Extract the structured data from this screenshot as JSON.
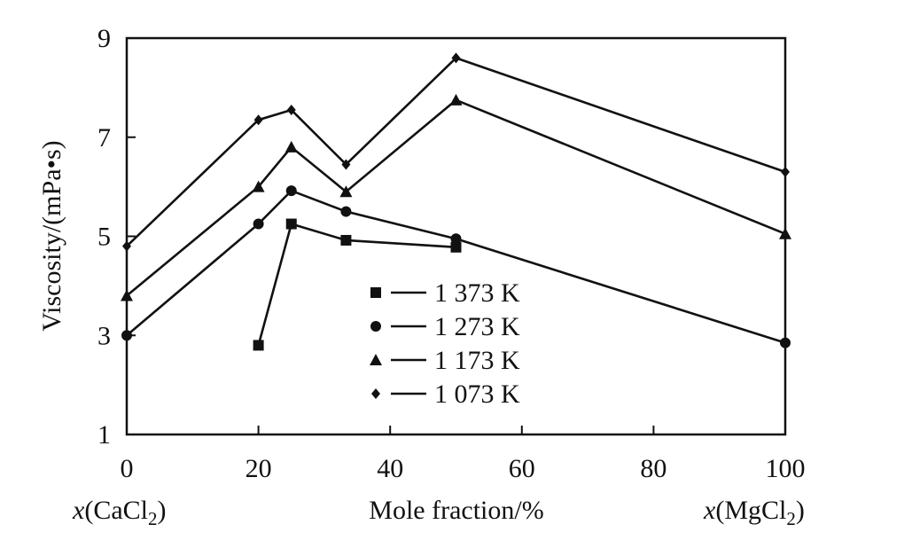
{
  "chart_data": {
    "type": "line",
    "xlabel": "Mole fraction/%",
    "ylabel": "Viscosity/(mPa•s)",
    "xlim": [
      0,
      100
    ],
    "ylim": [
      1,
      9
    ],
    "x_ticks": [
      "0",
      "20",
      "40",
      "60",
      "80",
      "100"
    ],
    "y_ticks": [
      "1",
      "3",
      "5",
      "7",
      "9"
    ],
    "x_left_label": {
      "italic": "x",
      "text": "(CaCl",
      "sub": "2",
      "close": ")"
    },
    "x_right_label": {
      "italic": "x",
      "text": "(MgCl",
      "sub": "2",
      "close": ")"
    },
    "legend_position": "center",
    "grid": false,
    "series": [
      {
        "name": "1 373 K",
        "marker": "square",
        "x": [
          20,
          25,
          33.3,
          50
        ],
        "y": [
          2.8,
          5.25,
          4.92,
          4.78
        ]
      },
      {
        "name": "1 273 K",
        "marker": "circle",
        "x": [
          0,
          20,
          25,
          33.3,
          50,
          100
        ],
        "y": [
          3.0,
          5.25,
          5.92,
          5.5,
          4.95,
          2.85
        ]
      },
      {
        "name": "1 173 K",
        "marker": "triangle",
        "x": [
          0,
          20,
          25,
          33.3,
          50,
          100
        ],
        "y": [
          3.8,
          6.0,
          6.8,
          5.9,
          7.75,
          5.05
        ]
      },
      {
        "name": "1 073 K",
        "marker": "diamond",
        "x": [
          0,
          20,
          25,
          33.3,
          50,
          100
        ],
        "y": [
          4.8,
          7.35,
          7.55,
          6.45,
          8.6,
          6.3
        ]
      }
    ]
  }
}
